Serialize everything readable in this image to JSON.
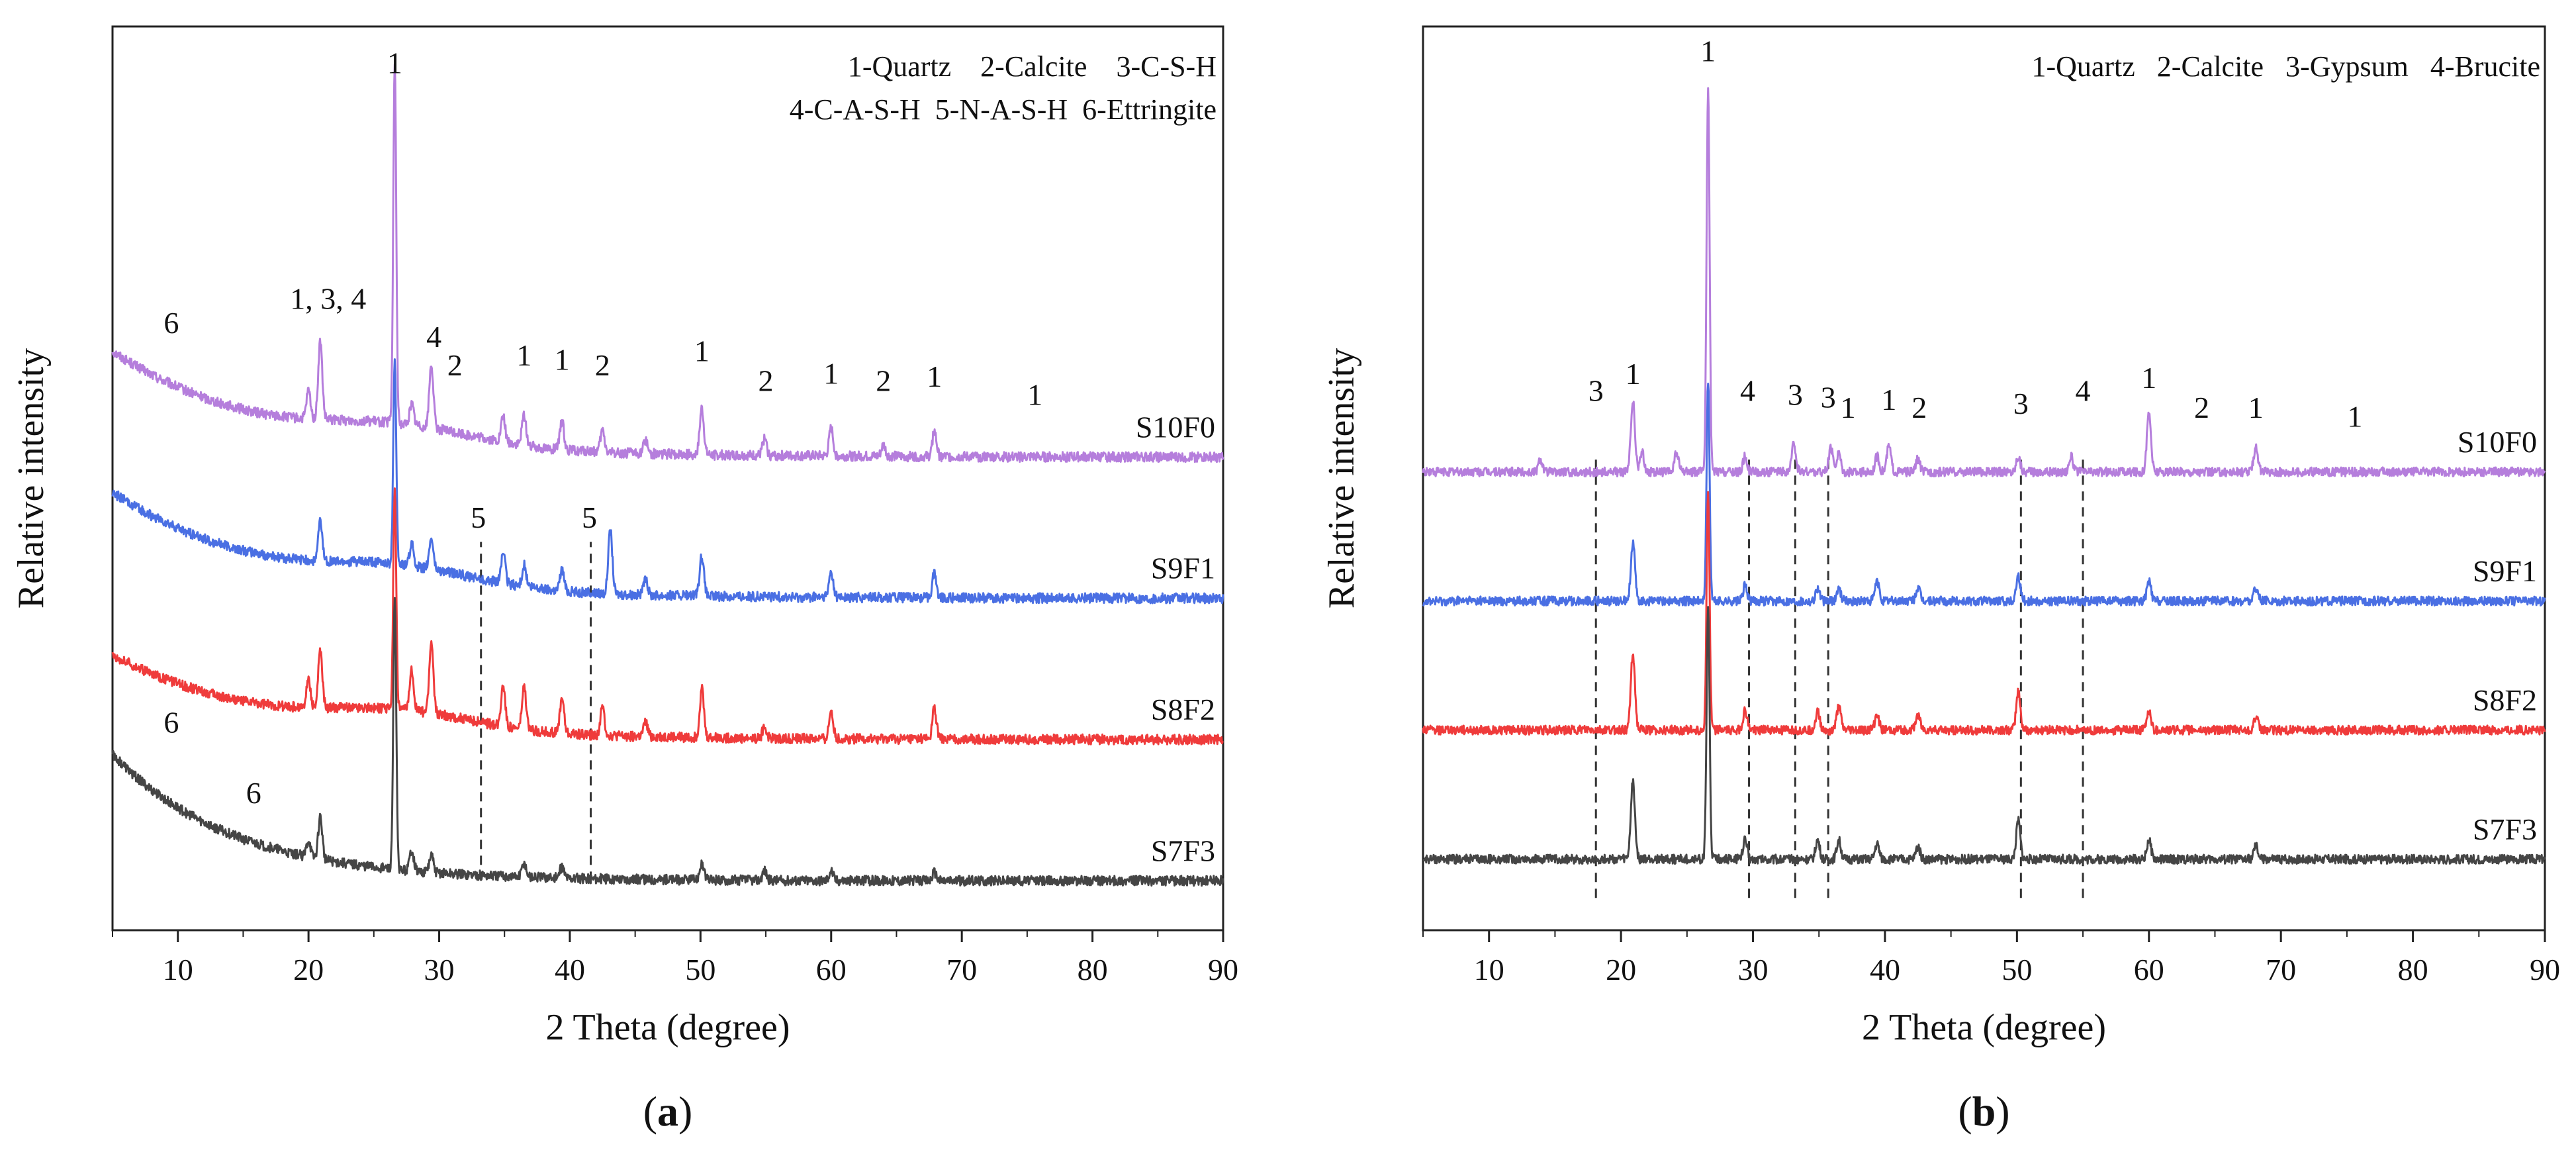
{
  "figure": {
    "panels": [
      "a",
      "b"
    ]
  },
  "chart_data": [
    {
      "type": "line",
      "panel_label": "a",
      "xlabel": "2 Theta (degree)",
      "ylabel": "Relative intensity",
      "xlim": [
        5,
        90
      ],
      "xticks": [
        10,
        20,
        30,
        40,
        50,
        60,
        70,
        80,
        90
      ],
      "legend_lines": [
        "1-Quartz    2-Calcite    3-C-S-H",
        "4-C-A-S-H  5-N-A-S-H  6-Ettringite"
      ],
      "series": [
        {
          "name": "S10F0",
          "color": "#b57edc",
          "offset": 3.0,
          "start_level": 0.75,
          "curve_decay": 12,
          "peaks": [
            [
              20.9,
              0.55
            ],
            [
              26.6,
              2.55
            ],
            [
              29.4,
              0.45
            ],
            [
              34.9,
              0.18
            ],
            [
              36.5,
              0.22
            ],
            [
              39.4,
              0.2
            ],
            [
              42.5,
              0.15
            ],
            [
              50.1,
              0.33
            ],
            [
              54.9,
              0.12
            ],
            [
              60.0,
              0.2
            ],
            [
              67.9,
              0.18
            ],
            [
              20.0,
              0.2
            ],
            [
              27.9,
              0.15
            ],
            [
              45.8,
              0.1
            ],
            [
              64.0,
              0.08
            ]
          ]
        },
        {
          "name": "S9F1",
          "color": "#4a6fe3",
          "offset": 2.0,
          "start_level": 0.75,
          "curve_decay": 12,
          "peaks": [
            [
              20.9,
              0.28
            ],
            [
              26.6,
              1.45
            ],
            [
              29.4,
              0.22
            ],
            [
              34.9,
              0.22
            ],
            [
              36.5,
              0.15
            ],
            [
              39.4,
              0.15
            ],
            [
              43.1,
              0.45
            ],
            [
              50.1,
              0.28
            ],
            [
              60.0,
              0.18
            ],
            [
              67.9,
              0.18
            ],
            [
              45.8,
              0.1
            ],
            [
              27.9,
              0.15
            ]
          ]
        },
        {
          "name": "S8F2",
          "color": "#ef3b3b",
          "offset": 1.0,
          "start_level": 0.6,
          "curve_decay": 12,
          "peaks": [
            [
              20.0,
              0.2
            ],
            [
              20.9,
              0.4
            ],
            [
              26.6,
              1.55
            ],
            [
              27.9,
              0.28
            ],
            [
              29.4,
              0.5
            ],
            [
              34.9,
              0.3
            ],
            [
              36.5,
              0.3
            ],
            [
              39.4,
              0.25
            ],
            [
              42.5,
              0.2
            ],
            [
              45.8,
              0.1
            ],
            [
              50.1,
              0.35
            ],
            [
              54.9,
              0.08
            ],
            [
              60.0,
              0.2
            ],
            [
              67.9,
              0.22
            ]
          ]
        },
        {
          "name": "S7F3",
          "color": "#454545",
          "offset": 0.0,
          "start_level": 0.9,
          "curve_decay": 9,
          "peaks": [
            [
              20.0,
              0.12
            ],
            [
              20.9,
              0.3
            ],
            [
              26.6,
              1.9
            ],
            [
              27.9,
              0.15
            ],
            [
              29.4,
              0.12
            ],
            [
              36.5,
              0.1
            ],
            [
              39.4,
              0.08
            ],
            [
              50.1,
              0.12
            ],
            [
              54.9,
              0.07
            ],
            [
              60.0,
              0.07
            ],
            [
              67.9,
              0.06
            ]
          ]
        }
      ],
      "peak_annotations": [
        {
          "text": "1",
          "x": 26.6,
          "y": 5.72
        },
        {
          "text": "1, 3, 4",
          "x": 21.5,
          "y": 4.05
        },
        {
          "text": "6",
          "x": 9.5,
          "y": 3.88
        },
        {
          "text": "4",
          "x": 29.6,
          "y": 3.78
        },
        {
          "text": "2",
          "x": 31.2,
          "y": 3.58
        },
        {
          "text": "1",
          "x": 36.5,
          "y": 3.65
        },
        {
          "text": "1",
          "x": 39.4,
          "y": 3.62
        },
        {
          "text": "2",
          "x": 42.5,
          "y": 3.58
        },
        {
          "text": "1",
          "x": 50.1,
          "y": 3.68
        },
        {
          "text": "2",
          "x": 55.0,
          "y": 3.47
        },
        {
          "text": "1",
          "x": 60.0,
          "y": 3.52
        },
        {
          "text": "2",
          "x": 64.0,
          "y": 3.47
        },
        {
          "text": "1",
          "x": 67.9,
          "y": 3.5
        },
        {
          "text": "1",
          "x": 75.6,
          "y": 3.37
        },
        {
          "text": "5",
          "x": 33.0,
          "y": 2.5
        },
        {
          "text": "5",
          "x": 41.5,
          "y": 2.5
        },
        {
          "text": "6",
          "x": 9.5,
          "y": 1.05
        },
        {
          "text": "6",
          "x": 15.8,
          "y": 0.55
        }
      ],
      "dashed_lines": [
        {
          "x": 33.2,
          "y_from": 0.0,
          "y_to": 2.4
        },
        {
          "x": 41.6,
          "y_from": 0.0,
          "y_to": 2.4
        }
      ]
    },
    {
      "type": "line",
      "panel_label": "b",
      "xlabel": "2 Theta (degree)",
      "ylabel": "Relative intensity",
      "xlim": [
        5,
        90
      ],
      "xticks": [
        10,
        20,
        30,
        40,
        50,
        60,
        70,
        80,
        90
      ],
      "legend_lines": [
        "1-Quartz   2-Calcite   3-Gypsum   4-Brucite"
      ],
      "series": [
        {
          "name": "S10F0",
          "color": "#b57edc",
          "offset": 3.0,
          "start_level": 0.0,
          "curve_decay": 10,
          "peaks": [
            [
              13.9,
              0.1
            ],
            [
              20.9,
              0.55
            ],
            [
              21.6,
              0.15
            ],
            [
              24.2,
              0.15
            ],
            [
              26.6,
              3.0
            ],
            [
              29.4,
              0.12
            ],
            [
              33.1,
              0.22
            ],
            [
              35.9,
              0.18
            ],
            [
              36.5,
              0.15
            ],
            [
              39.4,
              0.12
            ],
            [
              40.3,
              0.2
            ],
            [
              42.5,
              0.1
            ],
            [
              50.1,
              0.12
            ],
            [
              54.1,
              0.12
            ],
            [
              60.0,
              0.45
            ],
            [
              68.1,
              0.2
            ]
          ]
        },
        {
          "name": "S9F1",
          "color": "#4a6fe3",
          "offset": 2.0,
          "start_level": 0.0,
          "curve_decay": 10,
          "peaks": [
            [
              20.9,
              0.45
            ],
            [
              26.6,
              1.7
            ],
            [
              29.4,
              0.12
            ],
            [
              34.9,
              0.1
            ],
            [
              36.5,
              0.1
            ],
            [
              39.4,
              0.15
            ],
            [
              42.5,
              0.1
            ],
            [
              50.1,
              0.2
            ],
            [
              60.0,
              0.15
            ],
            [
              68.1,
              0.1
            ]
          ]
        },
        {
          "name": "S8F2",
          "color": "#ef3b3b",
          "offset": 1.0,
          "start_level": 0.0,
          "curve_decay": 10,
          "peaks": [
            [
              20.9,
              0.6
            ],
            [
              26.6,
              1.85
            ],
            [
              29.4,
              0.15
            ],
            [
              34.9,
              0.15
            ],
            [
              36.5,
              0.18
            ],
            [
              39.4,
              0.12
            ],
            [
              42.5,
              0.12
            ],
            [
              50.1,
              0.3
            ],
            [
              60.0,
              0.15
            ],
            [
              68.1,
              0.1
            ]
          ]
        },
        {
          "name": "S7F3",
          "color": "#454545",
          "offset": 0.0,
          "start_level": 0.0,
          "curve_decay": 10,
          "peaks": [
            [
              20.9,
              0.6
            ],
            [
              26.6,
              1.95
            ],
            [
              29.4,
              0.15
            ],
            [
              34.9,
              0.15
            ],
            [
              36.5,
              0.15
            ],
            [
              39.4,
              0.12
            ],
            [
              42.5,
              0.1
            ],
            [
              50.1,
              0.3
            ],
            [
              60.0,
              0.15
            ],
            [
              68.1,
              0.1
            ]
          ]
        }
      ],
      "peak_annotations": [
        {
          "text": "1",
          "x": 26.6,
          "y": 6.18
        },
        {
          "text": "1",
          "x": 20.9,
          "y": 3.68
        },
        {
          "text": "3",
          "x": 18.1,
          "y": 3.55
        },
        {
          "text": "4",
          "x": 29.6,
          "y": 3.55
        },
        {
          "text": "3",
          "x": 33.2,
          "y": 3.52
        },
        {
          "text": "3",
          "x": 35.7,
          "y": 3.5
        },
        {
          "text": "1",
          "x": 37.2,
          "y": 3.42
        },
        {
          "text": "1",
          "x": 40.3,
          "y": 3.48
        },
        {
          "text": "2",
          "x": 42.6,
          "y": 3.42
        },
        {
          "text": "3",
          "x": 50.3,
          "y": 3.45
        },
        {
          "text": "4",
          "x": 55.0,
          "y": 3.55
        },
        {
          "text": "1",
          "x": 60.0,
          "y": 3.65
        },
        {
          "text": "2",
          "x": 64.0,
          "y": 3.42
        },
        {
          "text": "1",
          "x": 68.1,
          "y": 3.42
        },
        {
          "text": "1",
          "x": 75.6,
          "y": 3.35
        }
      ],
      "dashed_lines": [
        {
          "x": 18.1,
          "y_from": -0.3,
          "y_to": 3.1
        },
        {
          "x": 29.7,
          "y_from": -0.3,
          "y_to": 3.1
        },
        {
          "x": 33.2,
          "y_from": -0.3,
          "y_to": 3.1
        },
        {
          "x": 35.7,
          "y_from": -0.3,
          "y_to": 3.1
        },
        {
          "x": 50.3,
          "y_from": -0.3,
          "y_to": 3.1
        },
        {
          "x": 55.0,
          "y_from": -0.3,
          "y_to": 3.1
        }
      ]
    }
  ]
}
